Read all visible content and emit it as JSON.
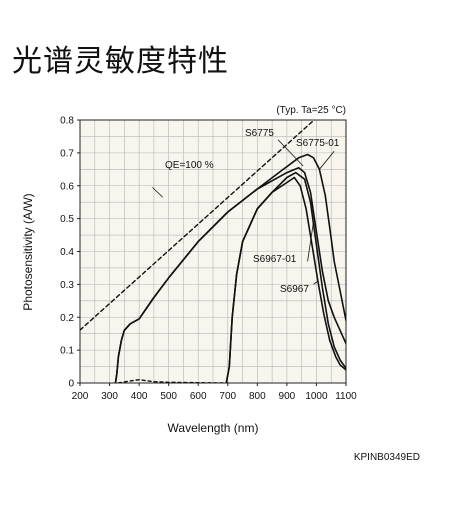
{
  "page": {
    "title": "光谱灵敏度特性",
    "doc_code": "KPINB0349ED"
  },
  "chart_data": {
    "type": "line",
    "title": "",
    "note": "(Typ. Ta=25 °C)",
    "xlabel": "Wavelength (nm)",
    "ylabel": "Photosensitivity (A/W)",
    "xlim": [
      200,
      1100
    ],
    "ylim": [
      0,
      0.8
    ],
    "grid": true,
    "xticks": [
      200,
      300,
      400,
      500,
      600,
      700,
      800,
      900,
      1000,
      1100
    ],
    "yticks": [
      0,
      0.1,
      0.2,
      0.3,
      0.4,
      0.5,
      0.6,
      0.7,
      0.8
    ],
    "ytick_labels": [
      "0",
      "0.1",
      "0.2",
      "0.3",
      "0.4",
      "0.5",
      "0.6",
      "0.7",
      "0.8"
    ],
    "series": [
      {
        "name": "QE=100 %",
        "style": "dashed",
        "points": [
          [
            200,
            0.161
          ],
          [
            1100,
            0.887
          ]
        ]
      },
      {
        "name": "S6775",
        "style": "solid",
        "points": [
          [
            320,
            0.0
          ],
          [
            325,
            0.03
          ],
          [
            330,
            0.08
          ],
          [
            340,
            0.13
          ],
          [
            350,
            0.16
          ],
          [
            370,
            0.18
          ],
          [
            400,
            0.195
          ],
          [
            450,
            0.26
          ],
          [
            500,
            0.32
          ],
          [
            600,
            0.43
          ],
          [
            700,
            0.52
          ],
          [
            800,
            0.59
          ],
          [
            900,
            0.64
          ],
          [
            940,
            0.655
          ],
          [
            960,
            0.64
          ],
          [
            980,
            0.58
          ],
          [
            1000,
            0.46
          ],
          [
            1020,
            0.34
          ],
          [
            1040,
            0.25
          ],
          [
            1060,
            0.2
          ],
          [
            1080,
            0.16
          ],
          [
            1100,
            0.12
          ]
        ]
      },
      {
        "name": "S6775-01",
        "style": "solid",
        "points": [
          [
            320,
            0.0
          ],
          [
            325,
            0.03
          ],
          [
            330,
            0.08
          ],
          [
            340,
            0.13
          ],
          [
            350,
            0.16
          ],
          [
            370,
            0.18
          ],
          [
            400,
            0.195
          ],
          [
            450,
            0.26
          ],
          [
            500,
            0.32
          ],
          [
            600,
            0.43
          ],
          [
            700,
            0.52
          ],
          [
            800,
            0.59
          ],
          [
            880,
            0.645
          ],
          [
            940,
            0.685
          ],
          [
            970,
            0.695
          ],
          [
            990,
            0.685
          ],
          [
            1010,
            0.65
          ],
          [
            1030,
            0.57
          ],
          [
            1050,
            0.44
          ],
          [
            1060,
            0.37
          ],
          [
            1080,
            0.28
          ],
          [
            1100,
            0.19
          ]
        ]
      },
      {
        "name": "S6967-01",
        "style": "solid",
        "points": [
          [
            695,
            0.0
          ],
          [
            705,
            0.05
          ],
          [
            715,
            0.2
          ],
          [
            730,
            0.33
          ],
          [
            750,
            0.43
          ],
          [
            770,
            0.47
          ],
          [
            800,
            0.53
          ],
          [
            850,
            0.58
          ],
          [
            900,
            0.625
          ],
          [
            930,
            0.64
          ],
          [
            960,
            0.62
          ],
          [
            980,
            0.55
          ],
          [
            1000,
            0.42
          ],
          [
            1020,
            0.29
          ],
          [
            1040,
            0.18
          ],
          [
            1060,
            0.11
          ],
          [
            1080,
            0.07
          ],
          [
            1100,
            0.045
          ]
        ]
      },
      {
        "name": "S6967",
        "style": "solid",
        "points": [
          [
            695,
            0.0
          ],
          [
            705,
            0.05
          ],
          [
            715,
            0.2
          ],
          [
            730,
            0.33
          ],
          [
            750,
            0.43
          ],
          [
            770,
            0.47
          ],
          [
            800,
            0.53
          ],
          [
            850,
            0.58
          ],
          [
            900,
            0.61
          ],
          [
            925,
            0.625
          ],
          [
            945,
            0.6
          ],
          [
            965,
            0.53
          ],
          [
            985,
            0.42
          ],
          [
            1005,
            0.31
          ],
          [
            1025,
            0.21
          ],
          [
            1045,
            0.13
          ],
          [
            1065,
            0.08
          ],
          [
            1080,
            0.055
          ],
          [
            1100,
            0.04
          ]
        ]
      },
      {
        "name": "",
        "style": "dotted-baseline",
        "points": [
          [
            330,
            0.0
          ],
          [
            360,
            0.005
          ],
          [
            400,
            0.01
          ],
          [
            450,
            0.004
          ],
          [
            500,
            0.002
          ],
          [
            600,
            0.001
          ],
          [
            700,
            0.0
          ]
        ]
      }
    ],
    "annotations": [
      {
        "text": "QE=100 %",
        "x": 0,
        "y": 0
      },
      {
        "text": "S6775",
        "x": 0,
        "y": 0
      },
      {
        "text": "S6775-01",
        "x": 0,
        "y": 0
      },
      {
        "text": "S6967-01",
        "x": 0,
        "y": 0
      },
      {
        "text": "S6967",
        "x": 0,
        "y": 0
      }
    ]
  }
}
